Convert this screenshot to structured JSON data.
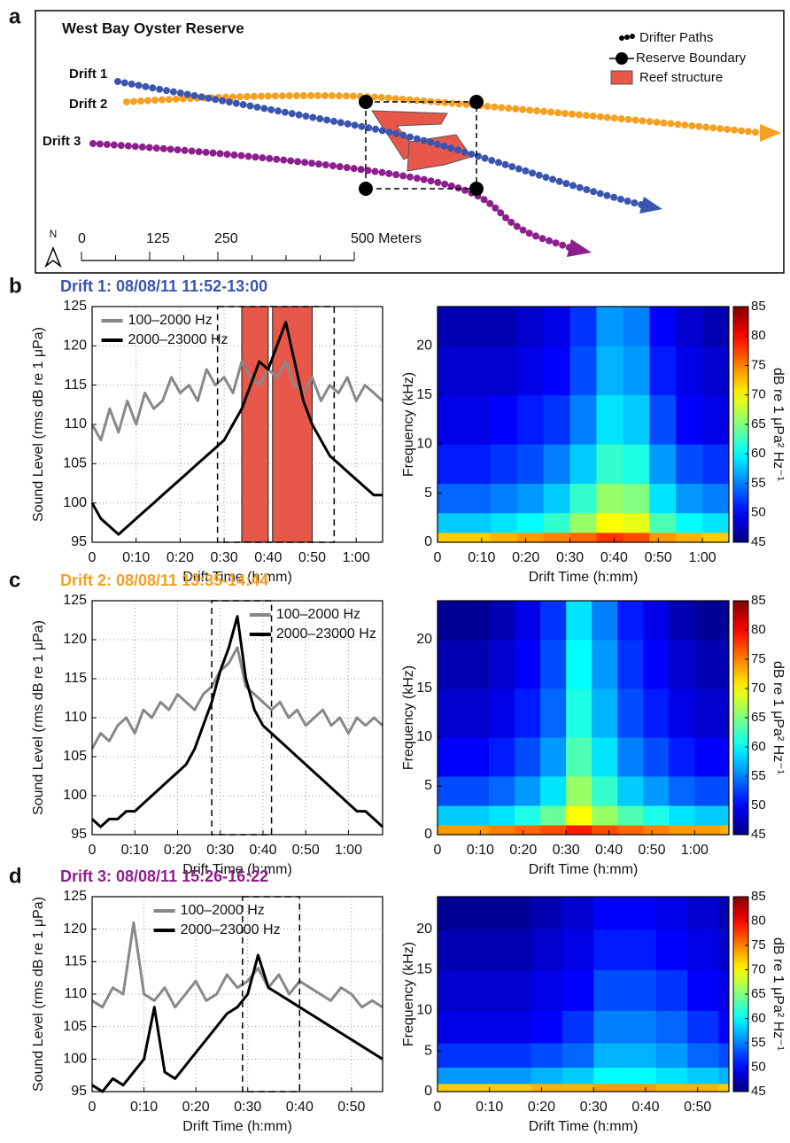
{
  "chart_data": [
    {
      "type": "map",
      "panel": "a",
      "title": "West Bay Oyster Reserve",
      "drifts": [
        {
          "name": "Drift 1",
          "color": "#3a55b0"
        },
        {
          "name": "Drift 2",
          "color": "#f5a020"
        },
        {
          "name": "Drift 3",
          "color": "#8e1e8e"
        }
      ],
      "legend": [
        "Drifter Paths",
        "Reserve Boundary",
        "Reef structure"
      ],
      "reef_color": "#e8584a",
      "north": "N",
      "scale_lim": [
        0,
        500
      ],
      "scale_ticks": [
        0,
        125,
        250,
        {
          "value": 500,
          "label": "500 Meters"
        }
      ]
    },
    {
      "type": "line",
      "panel": "b",
      "title": "Drift 1: 08/08/11 11:52-13:00",
      "title_color": "#3a55b0",
      "xlabel": "Drift Time (h:mm)",
      "ylabel": "Sound Level (rms dB re 1 μPa)",
      "xlim": [
        0,
        66
      ],
      "ylim": [
        95,
        125
      ],
      "grid": true,
      "legend_loc": "upper left",
      "xticks": [
        0,
        {
          "value": 10,
          "label": "0:10"
        },
        {
          "value": 20,
          "label": "0:20"
        },
        {
          "value": 30,
          "label": "0:30"
        },
        {
          "value": 40,
          "label": "0:40"
        },
        {
          "value": 50,
          "label": "0:50"
        },
        {
          "value": 60,
          "label": "1:00"
        }
      ],
      "yticks": [
        95,
        100,
        105,
        110,
        115,
        120,
        125
      ],
      "x": [
        0,
        2,
        4,
        6,
        8,
        10,
        12,
        14,
        16,
        18,
        20,
        22,
        24,
        26,
        28,
        30,
        32,
        34,
        36,
        38,
        40,
        42,
        44,
        46,
        48,
        50,
        52,
        54,
        56,
        58,
        60,
        62,
        64,
        66
      ],
      "series": [
        {
          "name": "100–2000 Hz",
          "color": "#888888",
          "values": [
            110,
            108,
            112,
            109,
            113,
            110,
            114,
            112,
            113,
            116,
            114,
            115,
            113,
            117,
            115,
            116,
            114,
            118,
            116,
            115,
            117,
            116,
            118,
            115,
            114,
            116,
            113,
            115,
            114,
            116,
            113,
            115,
            114,
            113
          ]
        },
        {
          "name": "2000–23000 Hz",
          "color": "#000000",
          "values": [
            100,
            98,
            97,
            96,
            97,
            98,
            99,
            100,
            101,
            102,
            103,
            104,
            105,
            106,
            107,
            108,
            110,
            112,
            115,
            118,
            117,
            120,
            123,
            118,
            113,
            110,
            108,
            106,
            105,
            104,
            103,
            102,
            101,
            101
          ]
        }
      ],
      "reef_spans": [
        [
          34,
          40
        ],
        [
          41,
          50
        ]
      ],
      "reef_color": "#e8584a",
      "reserve_bounds": [
        28.5,
        55
      ]
    },
    {
      "type": "heatmap",
      "xlabel": "Drift Time (h:mm)",
      "ylabel": "Frequency (kHz)",
      "xlim": [
        0,
        66
      ],
      "ylim": [
        0,
        24
      ],
      "xticks": [
        0,
        {
          "value": 10,
          "label": "0:10"
        },
        {
          "value": 20,
          "label": "0:20"
        },
        {
          "value": 30,
          "label": "0:30"
        },
        {
          "value": 40,
          "label": "0:40"
        },
        {
          "value": 50,
          "label": "0:50"
        },
        {
          "value": 60,
          "label": "1:00"
        }
      ],
      "yticks": [
        0,
        5,
        10,
        15,
        20
      ],
      "xbins": [
        0,
        6,
        12,
        18,
        24,
        30,
        36,
        42,
        48,
        54,
        60,
        66
      ],
      "ybins": [
        0,
        1,
        3,
        6,
        10,
        15,
        20,
        24
      ],
      "z": [
        [
          72,
          72,
          73,
          74,
          75,
          76,
          78,
          77,
          74,
          73,
          72
        ],
        [
          58,
          58,
          59,
          60,
          62,
          66,
          70,
          69,
          63,
          60,
          59
        ],
        [
          54,
          54,
          55,
          56,
          58,
          62,
          66,
          65,
          59,
          56,
          55
        ],
        [
          51,
          51,
          52,
          53,
          55,
          58,
          62,
          61,
          56,
          53,
          52
        ],
        [
          49,
          49,
          50,
          51,
          52,
          55,
          59,
          58,
          53,
          50,
          49
        ],
        [
          48,
          48,
          48,
          49,
          50,
          53,
          57,
          56,
          51,
          49,
          48
        ],
        [
          47,
          47,
          47,
          48,
          49,
          52,
          56,
          55,
          50,
          48,
          47
        ]
      ],
      "colorbar": {
        "label": "dB re 1 μPa² Hz⁻¹",
        "lim": [
          45,
          85
        ],
        "ticks": [
          45,
          50,
          55,
          60,
          65,
          70,
          75,
          80,
          85
        ]
      }
    },
    {
      "type": "line",
      "panel": "c",
      "title": "Drift 2: 08/08/11 13:35-14:44",
      "title_color": "#f5a020",
      "xlabel": "Drift Time (h:mm)",
      "ylabel": "Sound Level (rms dB re 1 μPa)",
      "xlim": [
        0,
        68
      ],
      "ylim": [
        95,
        125
      ],
      "grid": true,
      "legend_loc": "upper right",
      "xticks": [
        0,
        {
          "value": 10,
          "label": "0:10"
        },
        {
          "value": 20,
          "label": "0:20"
        },
        {
          "value": 30,
          "label": "0:30"
        },
        {
          "value": 40,
          "label": "0:40"
        },
        {
          "value": 50,
          "label": "0:50"
        },
        {
          "value": 60,
          "label": "1:00"
        }
      ],
      "yticks": [
        95,
        100,
        105,
        110,
        115,
        120,
        125
      ],
      "x": [
        0,
        2,
        4,
        6,
        8,
        10,
        12,
        14,
        16,
        18,
        20,
        22,
        24,
        26,
        28,
        30,
        32,
        34,
        36,
        38,
        40,
        42,
        44,
        46,
        48,
        50,
        52,
        54,
        56,
        58,
        60,
        62,
        64,
        66,
        68
      ],
      "series": [
        {
          "name": "100–2000 Hz",
          "color": "#888888",
          "values": [
            106,
            108,
            107,
            109,
            110,
            108,
            111,
            110,
            112,
            111,
            113,
            112,
            111,
            113,
            114,
            116,
            117,
            119,
            114,
            113,
            112,
            111,
            112,
            110,
            111,
            109,
            110,
            111,
            109,
            110,
            108,
            110,
            109,
            110,
            109
          ]
        },
        {
          "name": "2000–23000 Hz",
          "color": "#000000",
          "values": [
            97,
            96,
            97,
            97,
            98,
            98,
            99,
            100,
            101,
            102,
            103,
            104,
            106,
            109,
            112,
            116,
            119,
            123,
            115,
            111,
            109,
            108,
            107,
            106,
            105,
            104,
            103,
            102,
            101,
            100,
            99,
            98,
            98,
            97,
            96
          ]
        }
      ],
      "reserve_bounds": [
        28,
        42
      ]
    },
    {
      "type": "heatmap",
      "xlabel": "Drift Time (h:mm)",
      "ylabel": "Frequency (kHz)",
      "xlim": [
        0,
        68
      ],
      "ylim": [
        0,
        24
      ],
      "xticks": [
        0,
        {
          "value": 10,
          "label": "0:10"
        },
        {
          "value": 20,
          "label": "0:20"
        },
        {
          "value": 30,
          "label": "0:30"
        },
        {
          "value": 40,
          "label": "0:40"
        },
        {
          "value": 50,
          "label": "0:50"
        },
        {
          "value": 60,
          "label": "1:00"
        }
      ],
      "yticks": [
        0,
        5,
        10,
        15,
        20
      ],
      "xbins": [
        0,
        6,
        12,
        18,
        24,
        30,
        36,
        42,
        48,
        54,
        60,
        66,
        68
      ],
      "ybins": [
        0,
        1,
        3,
        6,
        10,
        15,
        20,
        24
      ],
      "z": [
        [
          74,
          74,
          75,
          76,
          77,
          79,
          77,
          76,
          75,
          74,
          74,
          73
        ],
        [
          58,
          58,
          59,
          61,
          64,
          70,
          66,
          63,
          61,
          59,
          58,
          58
        ],
        [
          53,
          53,
          54,
          56,
          59,
          66,
          62,
          58,
          56,
          54,
          53,
          53
        ],
        [
          50,
          50,
          51,
          53,
          56,
          63,
          59,
          55,
          53,
          51,
          50,
          50
        ],
        [
          48,
          48,
          49,
          51,
          54,
          61,
          57,
          53,
          51,
          49,
          48,
          48
        ],
        [
          47,
          47,
          48,
          50,
          53,
          60,
          56,
          52,
          50,
          48,
          47,
          47
        ],
        [
          46,
          46,
          47,
          49,
          52,
          59,
          55,
          51,
          49,
          47,
          46,
          46
        ]
      ],
      "colorbar": {
        "label": "dB re 1 μPa² Hz⁻¹",
        "lim": [
          45,
          85
        ],
        "ticks": [
          45,
          50,
          55,
          60,
          65,
          70,
          75,
          80,
          85
        ]
      }
    },
    {
      "type": "line",
      "panel": "d",
      "title": "Drift 3: 08/08/11 15:26-16:22",
      "title_color": "#8e1e8e",
      "xlabel": "Drift Time (h:mm)",
      "ylabel": "Sound Level (rms dB re 1 μPa)",
      "xlim": [
        0,
        56
      ],
      "ylim": [
        95,
        125
      ],
      "grid": true,
      "legend_loc": "upper center",
      "xticks": [
        0,
        {
          "value": 10,
          "label": "0:10"
        },
        {
          "value": 20,
          "label": "0:20"
        },
        {
          "value": 30,
          "label": "0:30"
        },
        {
          "value": 40,
          "label": "0:40"
        },
        {
          "value": 50,
          "label": "0:50"
        }
      ],
      "yticks": [
        95,
        100,
        105,
        110,
        115,
        120,
        125
      ],
      "x": [
        0,
        2,
        4,
        6,
        8,
        10,
        12,
        14,
        16,
        18,
        20,
        22,
        24,
        26,
        28,
        30,
        32,
        34,
        36,
        38,
        40,
        42,
        44,
        46,
        48,
        50,
        52,
        54,
        56
      ],
      "series": [
        {
          "name": "100–2000 Hz",
          "color": "#888888",
          "values": [
            109,
            108,
            111,
            110,
            121,
            110,
            109,
            111,
            108,
            110,
            112,
            109,
            110,
            113,
            111,
            112,
            114,
            111,
            113,
            110,
            112,
            111,
            110,
            109,
            111,
            110,
            108,
            109,
            108
          ]
        },
        {
          "name": "2000–23000 Hz",
          "color": "#000000",
          "values": [
            96,
            95,
            97,
            96,
            98,
            100,
            108,
            98,
            97,
            99,
            101,
            103,
            105,
            107,
            108,
            110,
            116,
            111,
            110,
            109,
            108,
            107,
            106,
            105,
            104,
            103,
            102,
            101,
            100
          ]
        }
      ],
      "reserve_bounds": [
        29,
        40
      ]
    },
    {
      "type": "heatmap",
      "xlabel": "Drift Time (h:mm)",
      "ylabel": "Frequency (kHz)",
      "xlim": [
        0,
        56
      ],
      "ylim": [
        0,
        24
      ],
      "xticks": [
        0,
        {
          "value": 10,
          "label": "0:10"
        },
        {
          "value": 20,
          "label": "0:20"
        },
        {
          "value": 30,
          "label": "0:30"
        },
        {
          "value": 40,
          "label": "0:40"
        },
        {
          "value": 50,
          "label": "0:50"
        }
      ],
      "yticks": [
        0,
        5,
        10,
        15,
        20
      ],
      "xbins": [
        0,
        6,
        12,
        18,
        24,
        30,
        36,
        42,
        48,
        54,
        56
      ],
      "ybins": [
        0,
        1,
        3,
        6,
        10,
        15,
        20,
        24
      ],
      "z": [
        [
          72,
          72,
          72,
          73,
          73,
          74,
          74,
          73,
          73,
          72
        ],
        [
          56,
          56,
          56,
          57,
          58,
          60,
          60,
          59,
          58,
          57
        ],
        [
          52,
          52,
          52,
          53,
          54,
          57,
          57,
          56,
          54,
          53
        ],
        [
          49,
          49,
          49,
          50,
          52,
          55,
          55,
          54,
          52,
          50
        ],
        [
          48,
          48,
          48,
          49,
          50,
          53,
          53,
          52,
          50,
          49
        ],
        [
          47,
          47,
          47,
          48,
          49,
          51,
          51,
          50,
          49,
          48
        ],
        [
          46,
          46,
          46,
          47,
          48,
          50,
          50,
          49,
          48,
          47
        ]
      ],
      "colorbar": {
        "label": "dB re 1 μPa² Hz⁻¹",
        "lim": [
          45,
          85
        ],
        "ticks": [
          45,
          50,
          55,
          60,
          65,
          70,
          75,
          80,
          85
        ]
      }
    }
  ]
}
